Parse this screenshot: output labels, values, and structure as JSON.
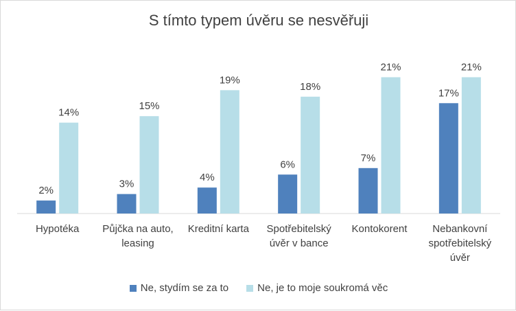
{
  "chart_data": {
    "type": "bar",
    "title": "S tímto typem úvěru se nesvěřuji",
    "categories": [
      "Hypotéka",
      "Půjčka na auto, leasing",
      "Kreditní karta",
      "Spotřebitelský úvěr v bance",
      "Kontokorent",
      "Nebankovní spotřebitelský úvěr"
    ],
    "series": [
      {
        "name": "Ne, stydím se za to",
        "color": "#4f81bd",
        "values": [
          2,
          3,
          4,
          6,
          7,
          17
        ],
        "labels": [
          "2%",
          "3%",
          "4%",
          "6%",
          "7%",
          "17%"
        ]
      },
      {
        "name": "Ne, je to moje soukromá věc",
        "color": "#b7dee8",
        "values": [
          14,
          15,
          19,
          18,
          21,
          21
        ],
        "labels": [
          "14%",
          "15%",
          "19%",
          "18%",
          "21%",
          "21%"
        ]
      }
    ],
    "ylim": [
      0,
      22
    ],
    "grid": false,
    "legend_position": "bottom"
  }
}
